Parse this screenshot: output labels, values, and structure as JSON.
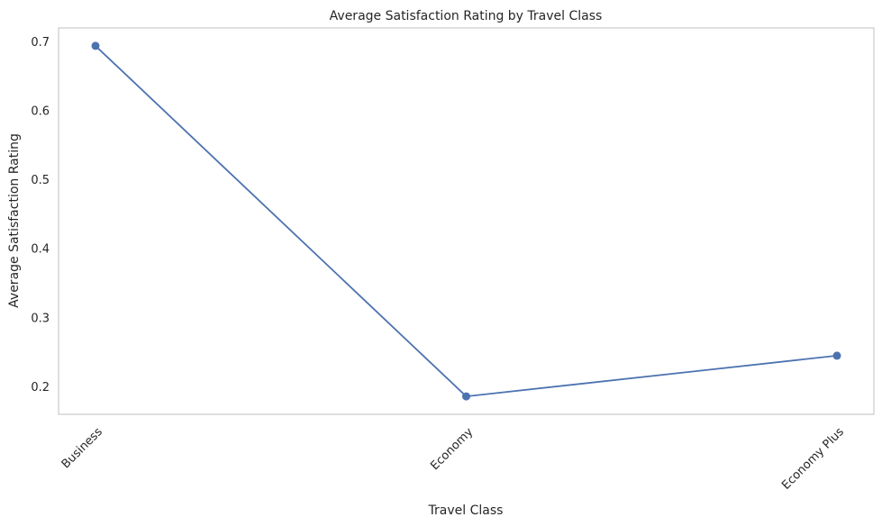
{
  "chart_data": {
    "type": "line",
    "title": "Average Satisfaction Rating by Travel Class",
    "xlabel": "Travel Class",
    "ylabel": "Average Satisfaction Rating",
    "categories": [
      "Business",
      "Economy",
      "Economy Plus"
    ],
    "series": [
      {
        "values": [
          0.694,
          0.186,
          0.245
        ],
        "color": "#4c72b0",
        "marker": "circle"
      }
    ],
    "ylim": [
      0.16,
      0.72
    ],
    "yticks": [
      "0.2",
      "0.3",
      "0.4",
      "0.5",
      "0.6",
      "0.7"
    ],
    "grid": false,
    "legend": "none"
  }
}
